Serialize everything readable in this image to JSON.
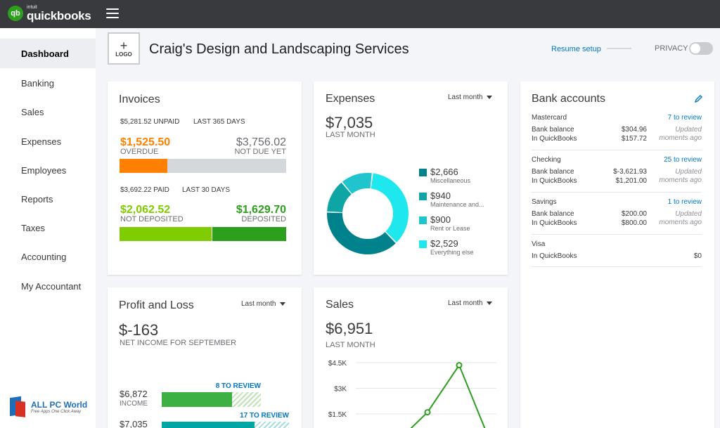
{
  "app": {
    "logo_mark": "qb",
    "logo_intuit": "intuit",
    "logo_name": "quickbooks",
    "menu_icon": "hamburger-icon"
  },
  "sidebar": {
    "items": [
      {
        "label": "Dashboard",
        "active": true
      },
      {
        "label": "Banking"
      },
      {
        "label": "Sales"
      },
      {
        "label": "Expenses"
      },
      {
        "label": "Employees"
      },
      {
        "label": "Reports"
      },
      {
        "label": "Taxes"
      },
      {
        "label": "Accounting"
      },
      {
        "label": "My Accountant"
      }
    ]
  },
  "watermark": {
    "title": "ALL PC World",
    "subtitle": "Free Apps One Click Away"
  },
  "header": {
    "logo_plus": "+",
    "logo_label": "LOGO",
    "company": "Craig's Design and Landscaping Services",
    "resume": "Resume setup",
    "privacy": "PRIVACY"
  },
  "invoices": {
    "title": "Invoices",
    "unpaid_amount": "$5,281.52 UNPAID",
    "unpaid_period": "LAST 365 DAYS",
    "overdue_amount": "$1,525.50",
    "overdue_label": "OVERDUE",
    "notdue_amount": "$3,756.02",
    "notdue_label": "NOT DUE YET",
    "paid_amount": "$3,692.22 PAID",
    "paid_period": "LAST 30 DAYS",
    "notdep_amount": "$2,062.52",
    "notdep_label": "NOT DEPOSITED",
    "dep_amount": "$1,629.70",
    "dep_label": "DEPOSITED",
    "overdue_fraction": 0.2888,
    "notdep_fraction": 0.5586
  },
  "expenses": {
    "title": "Expenses",
    "period": "Last month",
    "total": "$7,035",
    "total_label": "LAST MONTH",
    "legend": [
      {
        "amount": "$2,666",
        "label": "Miscellaneous",
        "value": 2666,
        "color": "#00828c"
      },
      {
        "amount": "$940",
        "label": "Maintenance and...",
        "value": 940,
        "color": "#10a5a5"
      },
      {
        "amount": "$900",
        "label": "Rent or Lease",
        "value": 900,
        "color": "#20c4cc"
      },
      {
        "amount": "$2,529",
        "label": "Everything else",
        "value": 2529,
        "color": "#1ee8ee"
      }
    ]
  },
  "bank": {
    "title": "Bank accounts",
    "edit_icon": "pencil-icon",
    "accounts": [
      {
        "name": "Mastercard",
        "review": "7 to review",
        "bank_label": "Bank balance",
        "bank_value": "$304.96",
        "qb_label": "In QuickBooks",
        "qb_value": "$157.72",
        "updated1": "Updated",
        "updated2": "moments ago"
      },
      {
        "name": "Checking",
        "review": "25 to review",
        "bank_label": "Bank balance",
        "bank_value": "$-3,621.93",
        "qb_label": "In QuickBooks",
        "qb_value": "$1,201.00",
        "updated1": "Updated",
        "updated2": "moments ago"
      },
      {
        "name": "Savings",
        "review": "1 to review",
        "bank_label": "Bank balance",
        "bank_value": "$200.00",
        "qb_label": "In QuickBooks",
        "qb_value": "$800.00",
        "updated1": "Updated",
        "updated2": "moments ago"
      },
      {
        "name": "Visa",
        "qb_label": "In QuickBooks",
        "qb_value": "$0"
      }
    ]
  },
  "pnl": {
    "title": "Profit and Loss",
    "period": "Last month",
    "net": "$-163",
    "net_label": "NET INCOME FOR SEPTEMBER",
    "income_amount": "$6,872",
    "income_label": "INCOME",
    "income_review": "8 TO REVIEW",
    "expense_amount": "$7,035",
    "expense_review": "17 TO REVIEW",
    "income_reviewed_fraction": 0.71,
    "expense_reviewed_fraction": 0.73
  },
  "sales": {
    "title": "Sales",
    "period": "Last month",
    "total": "$6,951",
    "total_label": "LAST MONTH"
  },
  "chart_data": {
    "type": "line",
    "title": "",
    "xlabel": "",
    "ylabel": "",
    "y_ticks": [
      {
        "value": 4500,
        "label": "$4.5K"
      },
      {
        "value": 3000,
        "label": "$3K"
      },
      {
        "value": 1500,
        "label": "$1.5K"
      }
    ],
    "ylim": [
      0,
      4500
    ],
    "grid": true,
    "series": [
      {
        "values": [
          0,
          1600,
          4350,
          0
        ],
        "color": "#2ca01c"
      }
    ]
  },
  "colors": {
    "overdue": "#ff8000",
    "notdue": "#d4d7dc",
    "notdeposited": "#7fcc00",
    "deposited": "#2ca01c",
    "income": "#3cb043",
    "expense_bar": "#00a6a4",
    "link": "#0077c5"
  }
}
